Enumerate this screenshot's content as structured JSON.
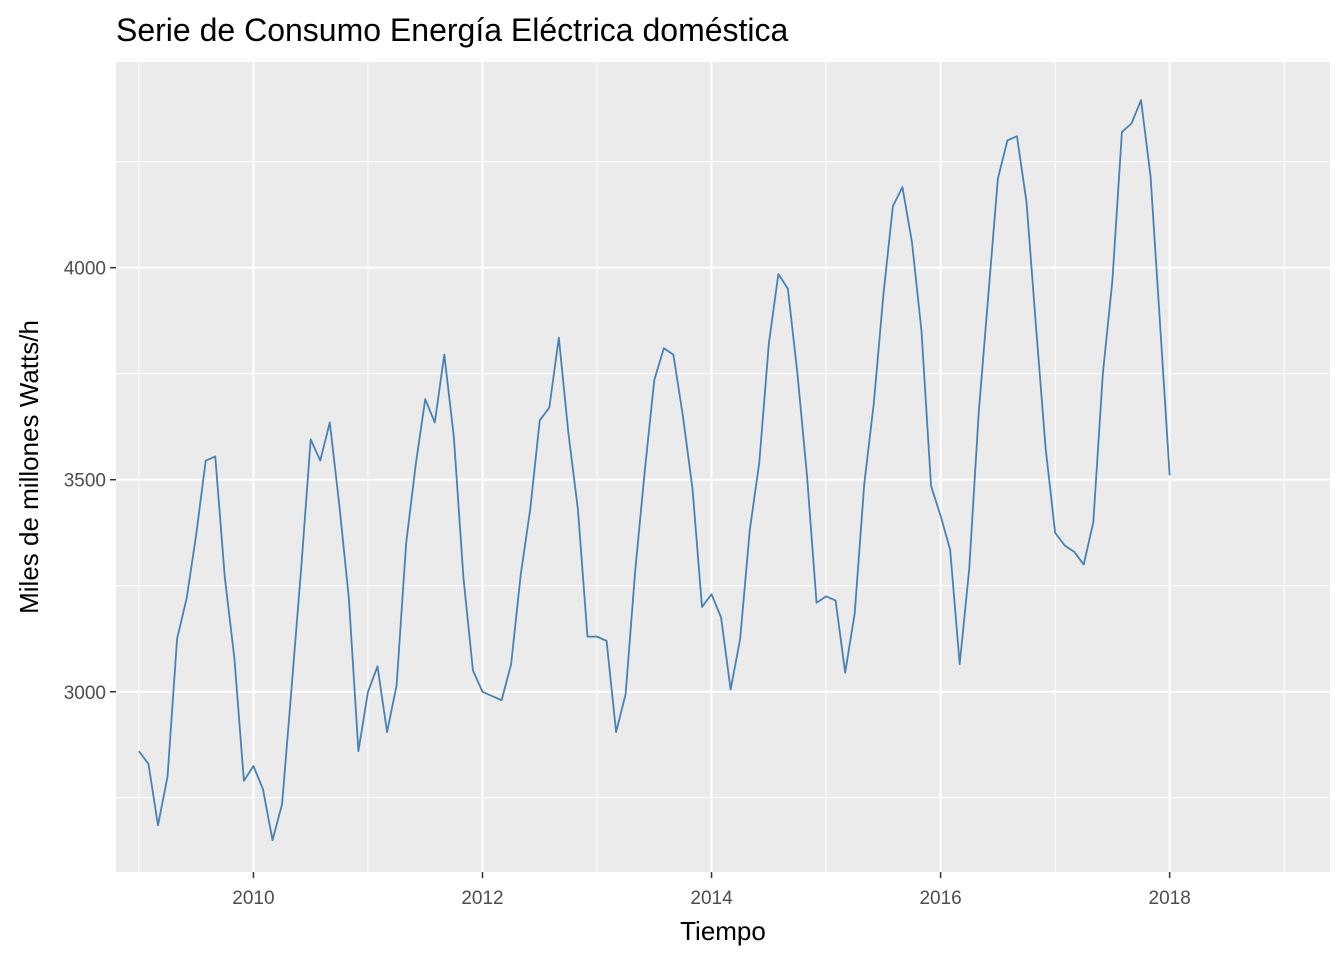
{
  "chart_data": {
    "type": "line",
    "title": "Serie de Consumo Energía Eléctrica doméstica",
    "xlabel": "Tiempo",
    "ylabel": "Miles de millones Watts/h",
    "xlim": [
      2008.8,
      2019.4
    ],
    "ylim": [
      2575,
      4485
    ],
    "x_ticks": [
      2010,
      2012,
      2014,
      2016,
      2018
    ],
    "y_ticks": [
      3000,
      3500,
      4000
    ],
    "grid": true,
    "background": "#ebebeb",
    "grid_color": "#ffffff",
    "line_color": "#4682b4",
    "series": [
      {
        "x_start": 2009.0,
        "x_step": 0.0833333,
        "values": [
          2860,
          2830,
          2685,
          2800,
          3125,
          3220,
          3370,
          3545,
          3555,
          3270,
          3080,
          2790,
          2825,
          2770,
          2650,
          2735,
          3010,
          3290,
          3595,
          3545,
          3635,
          3440,
          3220,
          2860,
          3000,
          3060,
          2905,
          3015,
          3350,
          3535,
          3690,
          3635,
          3795,
          3600,
          3270,
          3050,
          3000,
          2990,
          2980,
          3065,
          3275,
          3430,
          3640,
          3670,
          3835,
          3610,
          3430,
          3130,
          3130,
          3120,
          2905,
          2995,
          3285,
          3520,
          3735,
          3810,
          3795,
          3650,
          3480,
          3200,
          3230,
          3175,
          3005,
          3125,
          3380,
          3540,
          3820,
          3985,
          3950,
          3750,
          3510,
          3210,
          3225,
          3215,
          3045,
          3185,
          3490,
          3680,
          3935,
          4145,
          4190,
          4060,
          3850,
          3485,
          3415,
          3335,
          3065,
          3290,
          3660,
          3935,
          4210,
          4300,
          4310,
          4155,
          3860,
          3575,
          3375,
          3345,
          3330,
          3300,
          3400,
          3750,
          3970,
          4320,
          4340,
          4395,
          4215,
          3865,
          3510
        ]
      }
    ]
  }
}
